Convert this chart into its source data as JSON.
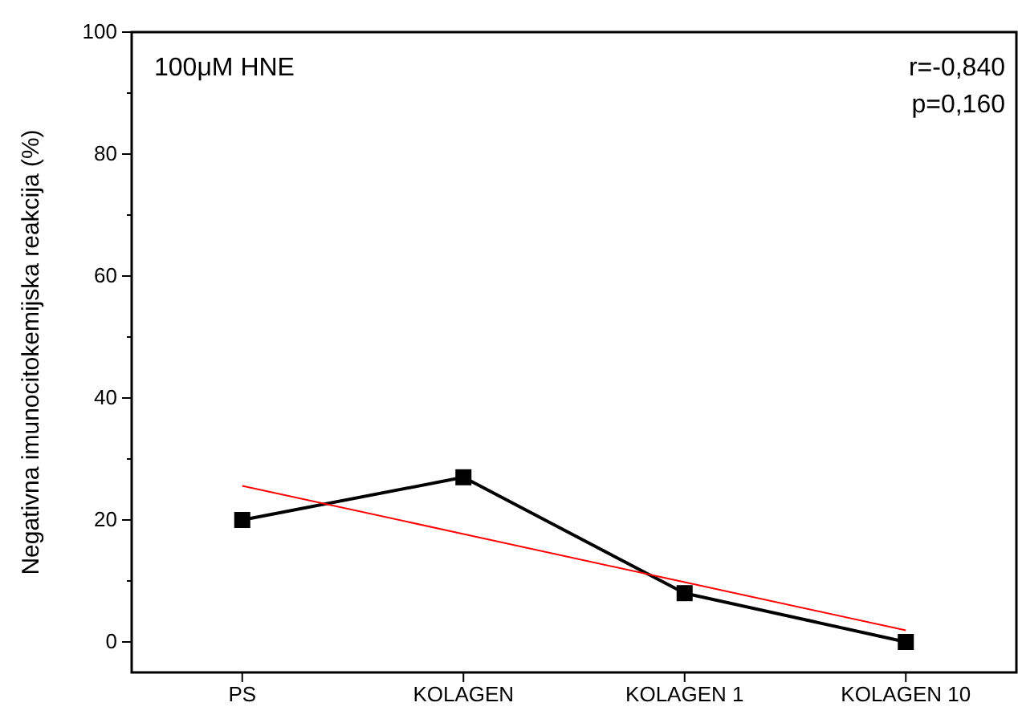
{
  "chart_data": {
    "type": "line",
    "ylabel": "Negativna imunocitokemijska reakcija (%)",
    "categories": [
      "PS",
      "KOLAGEN",
      "KOLAGEN 1",
      "KOLAGEN 10"
    ],
    "series": [
      {
        "color": "#000000",
        "marker": "square",
        "values": [
          20,
          27,
          8,
          0
        ]
      },
      {
        "color": "#ff0000",
        "marker": "none",
        "values": [
          25.6,
          17.7,
          9.8,
          1.9
        ]
      }
    ],
    "ylim": [
      -5,
      100
    ],
    "yticks": [
      0,
      {
        "value": 10,
        "label": null
      },
      20,
      {
        "value": 30,
        "label": null
      },
      40,
      {
        "value": 50,
        "label": null
      },
      60,
      {
        "value": 70,
        "label": null
      },
      80,
      {
        "value": 90,
        "label": null
      },
      100
    ],
    "annotations": [
      "100μM HNE",
      "r=-0,840",
      "p=0,160"
    ],
    "grid": false
  }
}
